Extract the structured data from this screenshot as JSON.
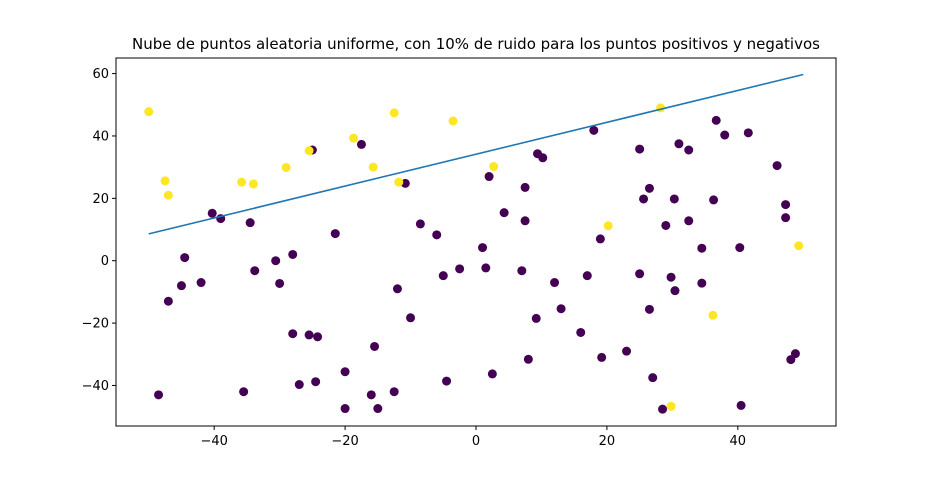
{
  "chart_data": {
    "type": "scatter",
    "title": "Nube de puntos aleatoria uniforme, con 10% de ruido para los puntos positivos y negativos",
    "xlabel": "",
    "ylabel": "",
    "xlim": [
      -55,
      55
    ],
    "ylim": [
      -53,
      65
    ],
    "xticks": [
      -40,
      -20,
      0,
      20,
      40
    ],
    "yticks": [
      -40,
      -20,
      0,
      20,
      40,
      60
    ],
    "xtick_labels": [
      "−40",
      "−20",
      "0",
      "20",
      "40"
    ],
    "ytick_labels": [
      "−40",
      "−20",
      "0",
      "20",
      "40",
      "60"
    ],
    "grid": false,
    "colors": {
      "negative": "#440154",
      "positive": "#fde725",
      "line": "#1f77b4"
    },
    "line": {
      "x": [
        -50,
        50
      ],
      "y": [
        8.6,
        59.7
      ]
    },
    "series": [
      {
        "class": "negative",
        "points": [
          [
            -47,
            -13
          ],
          [
            -48.5,
            -43
          ],
          [
            -45,
            -8
          ],
          [
            -44.5,
            1
          ],
          [
            -42,
            -7
          ],
          [
            -40.3,
            15.2
          ],
          [
            -39,
            13.5
          ],
          [
            -35.5,
            -42
          ],
          [
            -34.5,
            12.2
          ],
          [
            -33.8,
            -3.2
          ],
          [
            -30.6,
            0
          ],
          [
            -30,
            -7.3
          ],
          [
            -28,
            -23.4
          ],
          [
            -28,
            2
          ],
          [
            -27,
            -39.7
          ],
          [
            -25.5,
            -23.8
          ],
          [
            -25,
            35.5
          ],
          [
            -24.5,
            -38.8
          ],
          [
            -24.2,
            -24.4
          ],
          [
            -21.5,
            8.7
          ],
          [
            -20,
            -35.6
          ],
          [
            -20,
            -47.4
          ],
          [
            -17.5,
            37.3
          ],
          [
            -16,
            -43
          ],
          [
            -15.5,
            -27.5
          ],
          [
            -15,
            -47.4
          ],
          [
            -12.5,
            -42
          ],
          [
            -12,
            -9
          ],
          [
            -10.8,
            24.8
          ],
          [
            -10,
            -18.3
          ],
          [
            -8.5,
            11.8
          ],
          [
            -6,
            8.3
          ],
          [
            -5,
            -4.8
          ],
          [
            -4.5,
            -38.6
          ],
          [
            -2.5,
            -2.6
          ],
          [
            1,
            4.2
          ],
          [
            1.5,
            -2.3
          ],
          [
            2,
            27
          ],
          [
            2.5,
            -36.3
          ],
          [
            4.3,
            15.4
          ],
          [
            7,
            -3.2
          ],
          [
            7.5,
            23.5
          ],
          [
            7.5,
            12.8
          ],
          [
            8,
            -31.6
          ],
          [
            9.2,
            -18.5
          ],
          [
            9.4,
            34.3
          ],
          [
            10.2,
            33
          ],
          [
            12,
            -7
          ],
          [
            13,
            -15.4
          ],
          [
            16,
            -23
          ],
          [
            17,
            -4.8
          ],
          [
            18,
            41.8
          ],
          [
            19,
            7
          ],
          [
            19.2,
            -31
          ],
          [
            23,
            -29
          ],
          [
            25,
            35.8
          ],
          [
            25,
            -4.2
          ],
          [
            25.6,
            19.8
          ],
          [
            26.5,
            23.2
          ],
          [
            26.5,
            -15.6
          ],
          [
            27,
            -37.5
          ],
          [
            28.5,
            -47.6
          ],
          [
            29,
            11.3
          ],
          [
            29.8,
            -5.3
          ],
          [
            30.3,
            19.8
          ],
          [
            30.4,
            -9.6
          ],
          [
            31,
            37.5
          ],
          [
            32.5,
            12.8
          ],
          [
            32.5,
            35.5
          ],
          [
            34.5,
            -7.2
          ],
          [
            34.5,
            4
          ],
          [
            36.3,
            19.5
          ],
          [
            36.7,
            45
          ],
          [
            38,
            40.3
          ],
          [
            40.3,
            4.2
          ],
          [
            40.5,
            -46.4
          ],
          [
            41.6,
            41
          ],
          [
            46,
            30.5
          ],
          [
            47.3,
            18
          ],
          [
            47.3,
            13.8
          ],
          [
            48.1,
            -31.7
          ],
          [
            48.8,
            -29.8
          ]
        ]
      },
      {
        "class": "positive",
        "points": [
          [
            -50,
            47.8
          ],
          [
            -47.5,
            25.6
          ],
          [
            -47,
            21
          ],
          [
            -35.8,
            25.2
          ],
          [
            -34,
            24.6
          ],
          [
            -29,
            29.9
          ],
          [
            -25.5,
            35.3
          ],
          [
            -18.7,
            39.3
          ],
          [
            -15.7,
            30
          ],
          [
            -12.5,
            47.4
          ],
          [
            -11.8,
            25.2
          ],
          [
            -3.5,
            44.8
          ],
          [
            2.7,
            30.2
          ],
          [
            20.2,
            11.2
          ],
          [
            28.2,
            49
          ],
          [
            29.8,
            -46.7
          ],
          [
            36.2,
            -17.5
          ],
          [
            49.3,
            4.8
          ]
        ]
      }
    ]
  }
}
